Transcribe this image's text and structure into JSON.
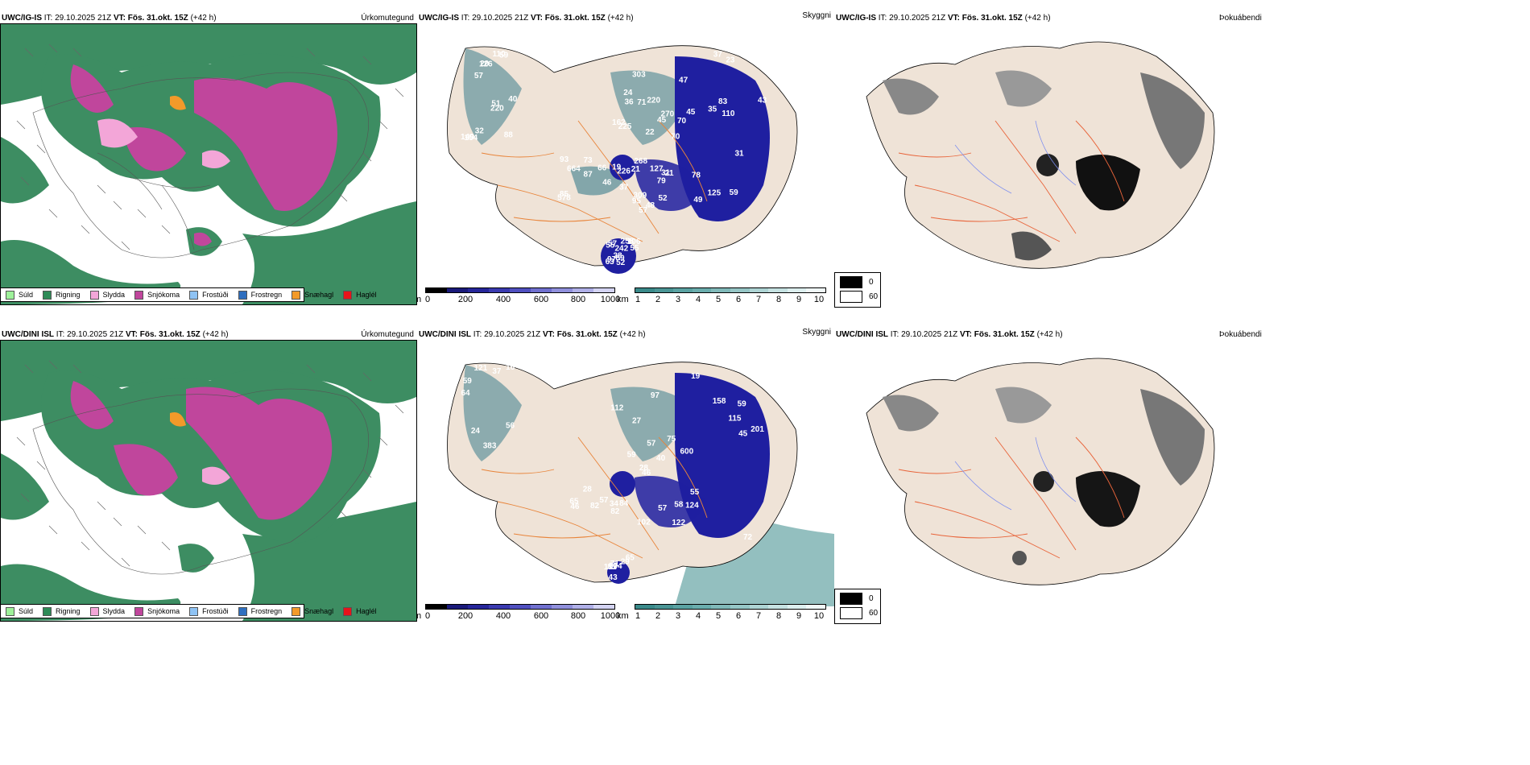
{
  "rows": [
    {
      "model": "UWC/IG-IS",
      "titles": {
        "precip": "Úrkomutegund",
        "cloud": "Skyggni",
        "fog": "Þokuábendi"
      },
      "cloud_numbers": [
        "88",
        "70",
        "47",
        "79",
        "66",
        "63",
        "20",
        "83",
        "162",
        "127",
        "85",
        "97",
        "126",
        "110",
        "270",
        "268",
        "73",
        "55",
        "51",
        "43",
        "71",
        "52",
        "87",
        "57",
        "110",
        "78",
        "70",
        "49",
        "46",
        "52",
        "57",
        "45",
        "45",
        "48",
        "226",
        "242",
        "149",
        "125",
        "220",
        "309",
        "19",
        "106",
        "220",
        "59",
        "225",
        "57",
        "578",
        "89",
        "59",
        "37",
        "36",
        "21",
        "664",
        "258",
        "154",
        "23",
        "303",
        "31",
        "37",
        "38",
        "32",
        "31",
        "24",
        "95",
        "93",
        "55",
        "40",
        "35",
        "22",
        "21"
      ],
      "fog_legend": [
        "0",
        "60"
      ]
    },
    {
      "model": "UWC/DINI ISL",
      "titles": {
        "precip": "Úrkomutegund",
        "cloud": "Skyggni",
        "fog": "Þokuábendi"
      },
      "cloud_numbers": [
        "56",
        "72",
        "57",
        "102",
        "82",
        "71",
        "121",
        "59",
        "40",
        "55",
        "57",
        "65",
        "64",
        "45",
        "59",
        "46",
        "46",
        "43",
        "37",
        "158",
        "112",
        "124",
        "82",
        "129",
        "16",
        "115",
        "75",
        "57",
        "65",
        "87",
        "383",
        "201",
        "600",
        "122",
        "84",
        "81",
        "59",
        "38",
        "27",
        "28",
        "34",
        "29",
        "24",
        "19",
        "97",
        "58",
        "28",
        "104"
      ],
      "fog_legend": [
        "0",
        "60"
      ]
    }
  ],
  "header": {
    "it_label": "IT:",
    "it_value": "29.10.2025 21Z",
    "vt_label": "VT:",
    "vt_value": "Fös. 31.okt. 15Z",
    "lead": "(+42 h)"
  },
  "precip_legend": [
    {
      "label": "Súld",
      "color": "#9ef19a"
    },
    {
      "label": "Rigning",
      "color": "#2e8b57"
    },
    {
      "label": "Slydda",
      "color": "#f3a6d8"
    },
    {
      "label": "Snjókoma",
      "color": "#c0469c"
    },
    {
      "label": "Frostúði",
      "color": "#8fc3f4"
    },
    {
      "label": "Frostregn",
      "color": "#2f6fbf"
    },
    {
      "label": "Snæhagl",
      "color": "#f29a2a"
    },
    {
      "label": "Haglél",
      "color": "#e8141a"
    }
  ],
  "colorbar_m": {
    "unit": "m",
    "ticks": [
      "0",
      "200",
      "400",
      "600",
      "800",
      "1000"
    ]
  },
  "colorbar_km": {
    "unit": "km",
    "ticks": [
      "1",
      "2",
      "3",
      "4",
      "5",
      "6",
      "7",
      "8",
      "9",
      "10"
    ]
  },
  "colors": {
    "rain": "#3d8d62",
    "snow": "#c0469c",
    "sleet": "#f3a6d8",
    "land": "#efe3d7",
    "cloud_dark": "#1f1fa0",
    "cloud_mid": "#3a7d8c",
    "roads": "#e8843a"
  }
}
